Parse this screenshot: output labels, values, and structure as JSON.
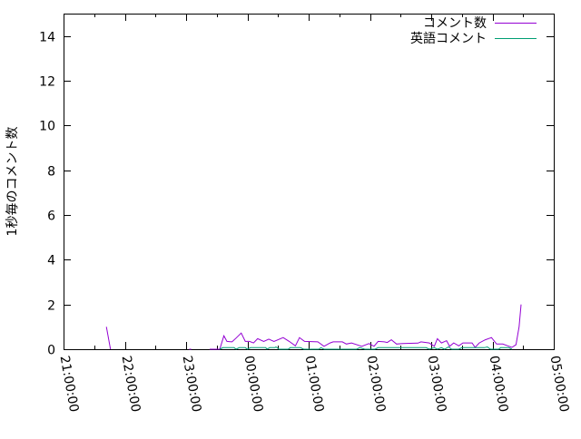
{
  "chart_data": {
    "type": "line",
    "title": "",
    "xlabel": "",
    "ylabel": "1秒毎のコメント数",
    "xlim": [
      "21:00:00",
      "05:00:00"
    ],
    "ylim": [
      0,
      15
    ],
    "xticks": [
      "21:00:00",
      "22:00:00",
      "23:00:00",
      "00:00:00",
      "01:00:00",
      "02:00:00",
      "03:00:00",
      "04:00:00",
      "05:00:00"
    ],
    "yticks": [
      "0",
      "2",
      "4",
      "6",
      "8",
      "10",
      "12",
      "14"
    ],
    "grid": false,
    "legend": "top-right",
    "series": [
      {
        "name": "コメント数",
        "color": "#9400d3",
        "segments": [
          [
            [
              "21:42",
              1.0
            ],
            [
              "21:46",
              0
            ]
          ],
          [
            [
              "23:03",
              0
            ],
            [
              "23:05",
              0
            ]
          ],
          [
            [
              "23:23",
              0
            ],
            [
              "23:33",
              0
            ],
            [
              "23:37",
              0.6
            ],
            [
              "23:40",
              0.35
            ],
            [
              "23:45",
              0.33
            ],
            [
              "23:49",
              0.5
            ],
            [
              "23:54",
              0.72
            ],
            [
              "23:58",
              0.35
            ],
            [
              "00:02",
              0.35
            ],
            [
              "00:06",
              0.28
            ],
            [
              "00:10",
              0.47
            ],
            [
              "00:16",
              0.35
            ],
            [
              "00:21",
              0.45
            ],
            [
              "00:26",
              0.35
            ],
            [
              "00:35",
              0.52
            ],
            [
              "00:41",
              0.35
            ],
            [
              "00:47",
              0.15
            ],
            [
              "00:51",
              0.52
            ],
            [
              "00:56",
              0.35
            ],
            [
              "01:09",
              0.33
            ],
            [
              "01:15",
              0.13
            ],
            [
              "01:21",
              0.28
            ],
            [
              "01:24",
              0.33
            ],
            [
              "01:33",
              0.33
            ],
            [
              "01:37",
              0.23
            ],
            [
              "01:42",
              0.28
            ],
            [
              "01:52",
              0.13
            ],
            [
              "01:59",
              0.25
            ],
            [
              "02:04",
              0.13
            ],
            [
              "02:08",
              0.35
            ],
            [
              "02:14",
              0.33
            ],
            [
              "02:17",
              0.3
            ],
            [
              "02:21",
              0.42
            ],
            [
              "02:26",
              0.23
            ],
            [
              "02:32",
              0.25
            ],
            [
              "02:47",
              0.27
            ],
            [
              "02:50",
              0.33
            ],
            [
              "02:58",
              0.28
            ],
            [
              "03:03",
              0.13
            ],
            [
              "03:06",
              0.47
            ],
            [
              "03:10",
              0.28
            ],
            [
              "03:15",
              0.38
            ],
            [
              "03:18",
              0.13
            ],
            [
              "03:22",
              0.28
            ],
            [
              "03:27",
              0.15
            ],
            [
              "03:31",
              0.28
            ],
            [
              "03:40",
              0.28
            ],
            [
              "03:43",
              0.08
            ],
            [
              "03:47",
              0.28
            ],
            [
              "03:53",
              0.42
            ],
            [
              "03:59",
              0.52
            ],
            [
              "04:04",
              0.23
            ],
            [
              "04:10",
              0.23
            ],
            [
              "04:15",
              0.15
            ],
            [
              "04:19",
              0.08
            ],
            [
              "04:23",
              0.2
            ],
            [
              "04:26",
              1.0
            ],
            [
              "04:28",
              2.0
            ]
          ]
        ]
      },
      {
        "name": "英語コメント",
        "color": "#009e73",
        "segments": [
          [
            [
              "23:33",
              0
            ],
            [
              "23:36",
              0.07
            ],
            [
              "23:47",
              0.07
            ],
            [
              "23:49",
              0
            ],
            [
              "23:52",
              0.07
            ],
            [
              "23:58",
              0.07
            ],
            [
              "24:00",
              0
            ],
            [
              "00:03",
              0.07
            ],
            [
              "00:18",
              0.07
            ],
            [
              "00:19",
              0
            ],
            [
              "00:22",
              0.07
            ],
            [
              "00:27",
              0.07
            ],
            [
              "00:28",
              0.1
            ],
            [
              "00:31",
              0
            ],
            [
              "00:40",
              0
            ],
            [
              "00:42",
              0.07
            ],
            [
              "00:52",
              0.07
            ],
            [
              "00:55",
              0
            ],
            [
              "01:10",
              0
            ],
            [
              "01:12",
              0.07
            ],
            [
              "01:15",
              0
            ],
            [
              "01:47",
              0
            ],
            [
              "01:50",
              0.07
            ],
            [
              "01:55",
              0
            ],
            [
              "02:05",
              0
            ],
            [
              "02:08",
              0.07
            ],
            [
              "02:30",
              0.07
            ],
            [
              "02:35",
              0.07
            ],
            [
              "02:55",
              0.07
            ],
            [
              "02:58",
              0
            ],
            [
              "03:03",
              0.07
            ],
            [
              "03:06",
              0
            ],
            [
              "03:10",
              0.07
            ],
            [
              "03:13",
              0
            ],
            [
              "03:17",
              0.1
            ],
            [
              "03:20",
              0
            ],
            [
              "03:27",
              0
            ],
            [
              "03:30",
              0.07
            ],
            [
              "03:52",
              0.07
            ],
            [
              "03:55",
              0.1
            ],
            [
              "03:58",
              0
            ],
            [
              "04:06",
              0
            ],
            [
              "04:08",
              0.07
            ],
            [
              "04:16",
              0.07
            ],
            [
              "04:19",
              0
            ]
          ]
        ]
      }
    ]
  }
}
